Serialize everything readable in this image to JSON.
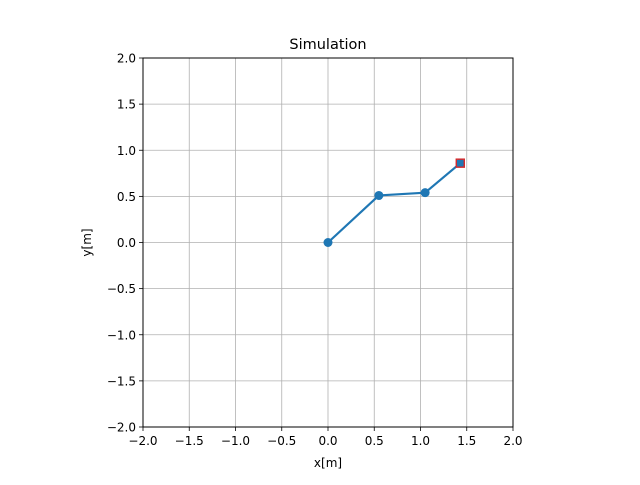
{
  "chart_data": {
    "type": "line",
    "title": "Simulation",
    "xlabel": "x[m]",
    "ylabel": "y[m]",
    "xlim": [
      -2.0,
      2.0
    ],
    "ylim": [
      -2.0,
      2.0
    ],
    "xticks": [
      -2.0,
      -1.5,
      -1.0,
      -0.5,
      0.0,
      0.5,
      1.0,
      1.5,
      2.0
    ],
    "yticks": [
      -2.0,
      -1.5,
      -1.0,
      -0.5,
      0.0,
      0.5,
      1.0,
      1.5,
      2.0
    ],
    "xtick_labels": [
      "−2.0",
      "−1.5",
      "−1.0",
      "−0.5",
      "0.0",
      "0.5",
      "1.0",
      "1.5",
      "2.0"
    ],
    "ytick_labels": [
      "−2.0",
      "−1.5",
      "−1.0",
      "−0.5",
      "0.0",
      "0.5",
      "1.0",
      "1.5",
      "2.0"
    ],
    "grid": true,
    "series": [
      {
        "color": "#1f77b4",
        "marker": "circle",
        "x": [
          0.0,
          0.55,
          1.05,
          1.43
        ],
        "y": [
          0.0,
          0.51,
          0.54,
          0.86
        ]
      }
    ],
    "target": {
      "x": 1.43,
      "y": 0.86,
      "marker": "square",
      "color": "#d62728"
    }
  }
}
